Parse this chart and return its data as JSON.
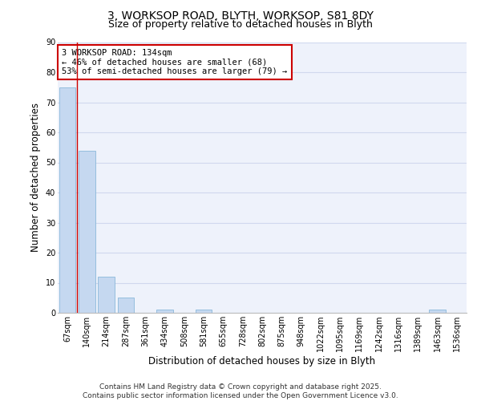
{
  "title_line1": "3, WORKSOP ROAD, BLYTH, WORKSOP, S81 8DY",
  "title_line2": "Size of property relative to detached houses in Blyth",
  "xlabel": "Distribution of detached houses by size in Blyth",
  "ylabel": "Number of detached properties",
  "categories": [
    "67sqm",
    "140sqm",
    "214sqm",
    "287sqm",
    "361sqm",
    "434sqm",
    "508sqm",
    "581sqm",
    "655sqm",
    "728sqm",
    "802sqm",
    "875sqm",
    "948sqm",
    "1022sqm",
    "1095sqm",
    "1169sqm",
    "1242sqm",
    "1316sqm",
    "1389sqm",
    "1463sqm",
    "1536sqm"
  ],
  "values": [
    75,
    54,
    12,
    5,
    0,
    1,
    0,
    1,
    0,
    0,
    0,
    0,
    0,
    0,
    0,
    0,
    0,
    0,
    0,
    1,
    0
  ],
  "bar_color": "#c5d8f0",
  "bar_edge_color": "#7aafd4",
  "background_color": "#eef2fb",
  "grid_color": "#d0d8ee",
  "annotation_box_text": "3 WORKSOP ROAD: 134sqm\n← 46% of detached houses are smaller (68)\n53% of semi-detached houses are larger (79) →",
  "annotation_box_color": "#ffffff",
  "annotation_box_edge_color": "#cc0000",
  "vline_color": "#cc0000",
  "vline_x": 0.5,
  "ylim": [
    0,
    90
  ],
  "yticks": [
    0,
    10,
    20,
    30,
    40,
    50,
    60,
    70,
    80,
    90
  ],
  "footer_line1": "Contains HM Land Registry data © Crown copyright and database right 2025.",
  "footer_line2": "Contains public sector information licensed under the Open Government Licence v3.0.",
  "title_fontsize": 10,
  "subtitle_fontsize": 9,
  "axis_label_fontsize": 8.5,
  "tick_fontsize": 7,
  "annotation_fontsize": 7.5,
  "footer_fontsize": 6.5
}
